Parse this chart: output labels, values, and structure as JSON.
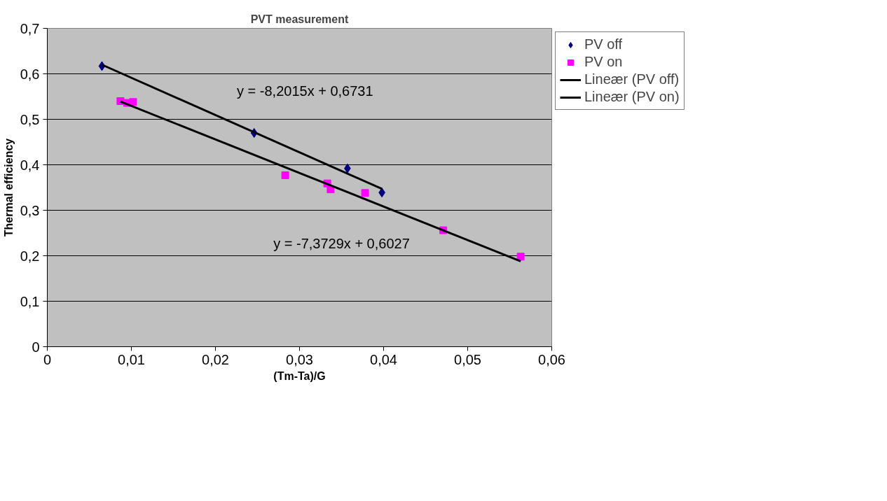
{
  "chart_data": {
    "type": "scatter",
    "title": "PVT measurement",
    "xlabel": "(Tm-Ta)/G",
    "ylabel": "Thermal efficiency",
    "xlim": [
      0,
      0.06
    ],
    "ylim": [
      0,
      0.7
    ],
    "xticks": [
      0,
      {
        "value": 0.01,
        "label": "0,01"
      },
      {
        "value": 0.02,
        "label": "0,02"
      },
      {
        "value": 0.03,
        "label": "0,03"
      },
      {
        "value": 0.04,
        "label": "0,04"
      },
      {
        "value": 0.05,
        "label": "0,05"
      },
      {
        "value": 0.06,
        "label": "0,06"
      }
    ],
    "yticks": [
      0,
      {
        "value": 0.1,
        "label": "0,1"
      },
      {
        "value": 0.2,
        "label": "0,2"
      },
      {
        "value": 0.3,
        "label": "0,3"
      },
      {
        "value": 0.4,
        "label": "0,4"
      },
      {
        "value": 0.5,
        "label": "0,5"
      },
      {
        "value": 0.6,
        "label": "0,6"
      },
      {
        "value": 0.7,
        "label": "0,7"
      }
    ],
    "grid": "y",
    "legend": "right",
    "series": [
      {
        "name": "PV off",
        "marker": "diamond",
        "color": "#000080",
        "x": [
          0.0065,
          0.0246,
          0.0357,
          0.0398
        ],
        "values": [
          0.617,
          0.47,
          0.392,
          0.339
        ]
      },
      {
        "name": "PV on",
        "marker": "square",
        "color": "#ff00ff",
        "x": [
          0.0087,
          0.0095,
          0.0102,
          0.0283,
          0.0333,
          0.0337,
          0.0378,
          0.0471,
          0.0563
        ],
        "values": [
          0.54,
          0.536,
          0.538,
          0.377,
          0.359,
          0.346,
          0.338,
          0.256,
          0.198
        ]
      },
      {
        "name": "Lineær (PV off)",
        "type": "line",
        "marker": "none",
        "line_style": "solid",
        "color": "#000000",
        "x": [
          0.0065,
          0.0398
        ],
        "values": [
          0.62,
          0.347
        ]
      },
      {
        "name": "Lineær (PV on)",
        "type": "line",
        "marker": "none",
        "line_style": "solid",
        "color": "#000000",
        "x": [
          0.0087,
          0.0563
        ],
        "values": [
          0.539,
          0.188
        ]
      }
    ],
    "annotations": [
      "y = -8,2015x + 0,6731",
      "y = -7,3729x + 0,6027"
    ]
  }
}
